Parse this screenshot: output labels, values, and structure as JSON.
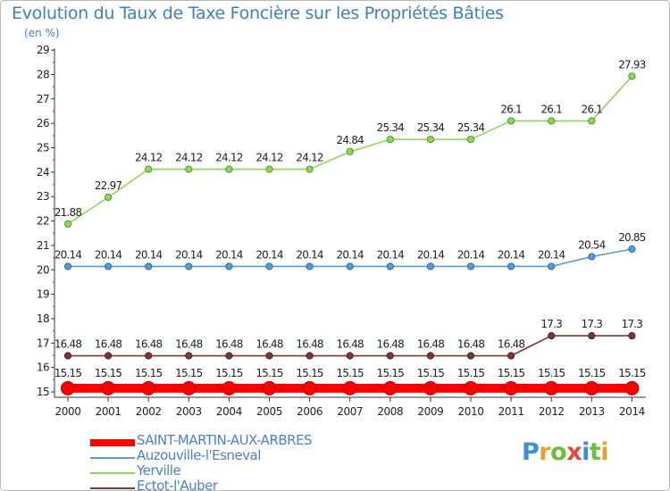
{
  "title": "Evolution du Taux de Taxe Foncière sur les Propriétés Bâties",
  "subtitle": "(en %)",
  "logo": {
    "text": "Proxiti",
    "letter_colors": [
      "#3b8fd8",
      "#e7a12c",
      "#6cbf3b",
      "#e8453c",
      "#3b8fd8",
      "#6cbf3b",
      "#e7a12c"
    ]
  },
  "chart_data": {
    "type": "line",
    "title": "Evolution du Taux de Taxe Foncière sur les Propriétés Bâties",
    "ylabel": "(en %)",
    "xlabel": "",
    "ylim": [
      15,
      29
    ],
    "yticks": [
      15,
      16,
      17,
      18,
      19,
      20,
      21,
      22,
      23,
      24,
      25,
      26,
      27,
      28,
      29
    ],
    "grid": false,
    "categories": [
      "2000",
      "2001",
      "2002",
      "2003",
      "2004",
      "2005",
      "2006",
      "2007",
      "2008",
      "2009",
      "2010",
      "2011",
      "2012",
      "2013",
      "2014"
    ],
    "series": [
      {
        "name": "SAINT-MARTIN-AUX-ARBRES",
        "color": "#ff0000",
        "labels": [
          "15.15",
          "15.15",
          "15.15",
          "15.15",
          "15.15",
          "15.15",
          "15.15",
          "15.15",
          "15.15",
          "15.15",
          "15.15",
          "15.15",
          "15.15",
          "15.15",
          "15.15"
        ],
        "values": [
          15.15,
          15.15,
          15.15,
          15.15,
          15.15,
          15.15,
          15.15,
          15.15,
          15.15,
          15.15,
          15.15,
          15.15,
          15.15,
          15.15,
          15.15
        ]
      },
      {
        "name": "Auzouville-l'Esneval",
        "color": "#5a9ad3",
        "labels": [
          "20.14",
          "20.14",
          "20.14",
          "20.14",
          "20.14",
          "20.14",
          "20.14",
          "20.14",
          "20.14",
          "20.14",
          "20.14",
          "20.14",
          "20.14",
          "20.54",
          "20.85"
        ],
        "values": [
          20.14,
          20.14,
          20.14,
          20.14,
          20.14,
          20.14,
          20.14,
          20.14,
          20.14,
          20.14,
          20.14,
          20.14,
          20.14,
          20.54,
          20.85
        ]
      },
      {
        "name": "Yerville",
        "color": "#8fd65a",
        "labels": [
          "21.88",
          "22.97",
          "24.12",
          "24.12",
          "24.12",
          "24.12",
          "24.12",
          "24.84",
          "25.34",
          "25.34",
          "25.34",
          "26.1",
          "26.1",
          "26.1",
          "27.93"
        ],
        "values": [
          21.88,
          22.97,
          24.12,
          24.12,
          24.12,
          24.12,
          24.12,
          24.84,
          25.34,
          25.34,
          25.34,
          26.1,
          26.1,
          26.1,
          27.93
        ]
      },
      {
        "name": "Ectot-l'Auber",
        "color": "#7a3838",
        "labels": [
          "16.48",
          "16.48",
          "16.48",
          "16.48",
          "16.48",
          "16.48",
          "16.48",
          "16.48",
          "16.48",
          "16.48",
          "16.48",
          "16.48",
          "17.3",
          "17.3",
          "17.3"
        ],
        "values": [
          16.48,
          16.48,
          16.48,
          16.48,
          16.48,
          16.48,
          16.48,
          16.48,
          16.48,
          16.48,
          16.48,
          16.48,
          17.3,
          17.3,
          17.3
        ]
      }
    ]
  }
}
